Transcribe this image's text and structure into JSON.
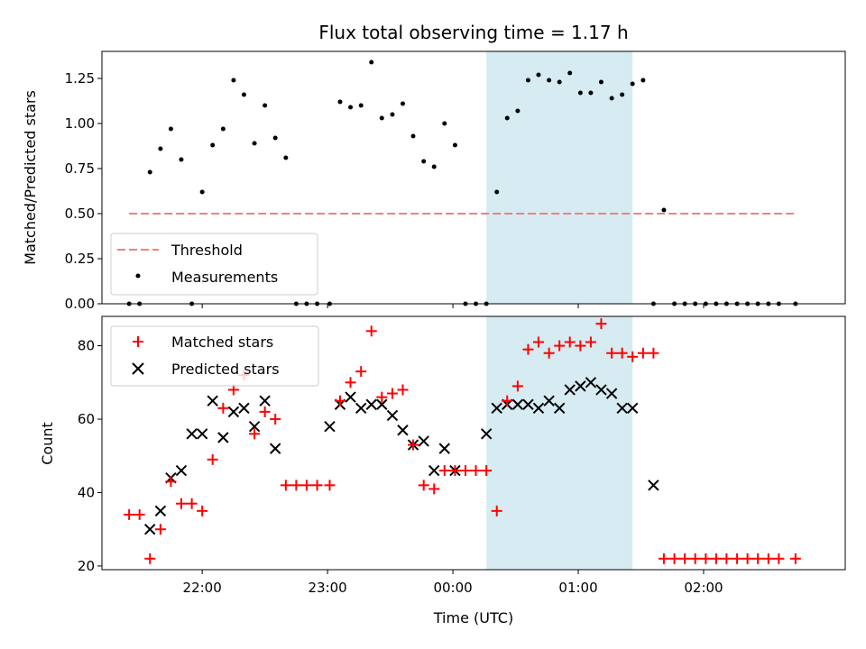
{
  "chart_data": [
    {
      "type": "scatter",
      "title": "Flux total observing time = 1.17 h",
      "xlabel": "",
      "ylabel": "Matched/Predicted stars",
      "ylim": [
        0,
        1.4
      ],
      "yticks": [
        "0.00",
        "0.25",
        "0.50",
        "0.75",
        "1.00",
        "1.25"
      ],
      "legend_position": "lower-left",
      "highlight_span_utc_hours": [
        24.267,
        25.433
      ],
      "threshold": {
        "name": "Threshold",
        "value": 0.5,
        "x_range": [
          21.417,
          26.733
        ],
        "color": "#f08080"
      },
      "series": [
        {
          "name": "Measurements",
          "color": "#000000",
          "x": [
            21.417,
            21.5,
            21.583,
            21.667,
            21.75,
            21.833,
            21.917,
            22.0,
            22.083,
            22.167,
            22.25,
            22.333,
            22.417,
            22.5,
            22.583,
            22.667,
            22.75,
            22.833,
            22.917,
            23.017,
            23.1,
            23.183,
            23.267,
            23.35,
            23.433,
            23.517,
            23.6,
            23.683,
            23.767,
            23.85,
            23.933,
            24.017,
            24.1,
            24.183,
            24.267,
            24.35,
            24.433,
            24.517,
            24.6,
            24.683,
            24.767,
            24.85,
            24.933,
            25.017,
            25.1,
            25.183,
            25.267,
            25.35,
            25.433,
            25.517,
            25.6,
            25.683,
            25.767,
            25.85,
            25.933,
            26.017,
            26.1,
            26.183,
            26.267,
            26.35,
            26.433,
            26.517,
            26.6,
            26.733
          ],
          "y": [
            0,
            0,
            0.73,
            0.86,
            0.97,
            0.8,
            0,
            0.62,
            0.88,
            0.97,
            1.24,
            1.16,
            0.89,
            1.1,
            0.92,
            0.81,
            0,
            0,
            0,
            0,
            1.12,
            1.09,
            1.1,
            1.34,
            1.03,
            1.05,
            1.11,
            0.93,
            0.79,
            0.76,
            1.0,
            0.88,
            0,
            0,
            0,
            0.62,
            1.03,
            1.07,
            1.24,
            1.27,
            1.24,
            1.23,
            1.28,
            1.17,
            1.17,
            1.23,
            1.14,
            1.16,
            1.22,
            1.24,
            0,
            0.52,
            0,
            0,
            0,
            0,
            0,
            0,
            0,
            0,
            0,
            0,
            0,
            0
          ]
        }
      ]
    },
    {
      "type": "scatter",
      "title": "",
      "xlabel": "Time (UTC)",
      "ylabel": "Count",
      "ylim": [
        19,
        88
      ],
      "yticks": [
        "20",
        "40",
        "60",
        "80"
      ],
      "xticks": [
        "22:00",
        "23:00",
        "00:00",
        "01:00",
        "02:00"
      ],
      "xlim_utc_hours": [
        21.2,
        27.13
      ],
      "legend_position": "top-left",
      "highlight_span_utc_hours": [
        24.267,
        25.433
      ],
      "series": [
        {
          "name": "Matched stars",
          "marker": "plus",
          "color": "#ff0000",
          "x": [
            21.417,
            21.5,
            21.583,
            21.667,
            21.75,
            21.833,
            21.917,
            22.0,
            22.083,
            22.167,
            22.25,
            22.333,
            22.417,
            22.5,
            22.583,
            22.667,
            22.75,
            22.833,
            22.917,
            23.017,
            23.1,
            23.183,
            23.267,
            23.35,
            23.433,
            23.517,
            23.6,
            23.683,
            23.767,
            23.85,
            23.933,
            24.017,
            24.1,
            24.183,
            24.267,
            24.35,
            24.433,
            24.517,
            24.6,
            24.683,
            24.767,
            24.85,
            24.933,
            25.017,
            25.1,
            25.183,
            25.267,
            25.35,
            25.433,
            25.517,
            25.6,
            25.683,
            25.767,
            25.85,
            25.933,
            26.017,
            26.1,
            26.183,
            26.267,
            26.35,
            26.433,
            26.517,
            26.6,
            26.733
          ],
          "y": [
            34,
            34,
            22,
            30,
            43,
            37,
            37,
            35,
            49,
            63,
            68,
            72,
            56,
            62,
            60,
            42,
            42,
            42,
            42,
            42,
            65,
            70,
            73,
            84,
            66,
            67,
            68,
            53,
            42,
            41,
            46,
            46,
            46,
            46,
            46,
            35,
            65,
            69,
            79,
            81,
            78,
            80,
            81,
            80,
            81,
            86,
            78,
            78,
            77,
            78,
            78,
            22,
            22,
            22,
            22,
            22,
            22,
            22,
            22,
            22,
            22,
            22,
            22,
            22
          ]
        },
        {
          "name": "Predicted stars",
          "marker": "x",
          "color": "#000000",
          "x": [
            21.583,
            21.667,
            21.75,
            21.833,
            21.917,
            22.0,
            22.083,
            22.167,
            22.25,
            22.333,
            22.417,
            22.5,
            22.583,
            23.017,
            23.1,
            23.183,
            23.267,
            23.35,
            23.433,
            23.517,
            23.6,
            23.683,
            23.767,
            23.85,
            23.933,
            24.017,
            24.267,
            24.35,
            24.433,
            24.517,
            24.6,
            24.683,
            24.767,
            24.85,
            24.933,
            25.017,
            25.1,
            25.183,
            25.267,
            25.35,
            25.433,
            25.6
          ],
          "y": [
            30,
            35,
            44,
            46,
            56,
            56,
            65,
            55,
            62,
            63,
            58,
            65,
            52,
            58,
            64,
            66,
            63,
            64,
            64,
            61,
            57,
            53,
            54,
            46,
            52,
            46,
            56,
            63,
            64,
            64,
            64,
            63,
            65,
            63,
            68,
            69,
            70,
            68,
            67,
            63,
            63,
            42
          ]
        }
      ]
    }
  ]
}
